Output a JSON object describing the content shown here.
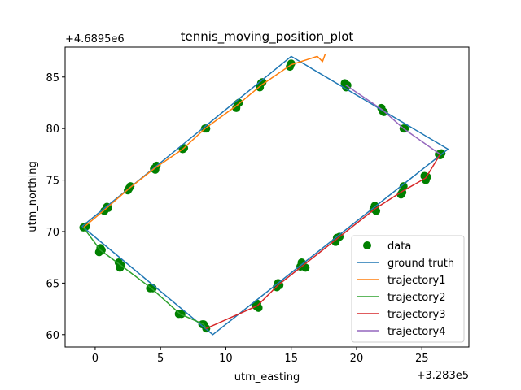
{
  "chart_data": {
    "type": "scatter",
    "title": "tennis_moving_position_plot",
    "xlabel": "utm_easting",
    "ylabel": "utm_northing",
    "x_offset_text": "+3.283e5",
    "y_offset_text": "+4.6895e6",
    "xlim": [
      -2.3,
      28.6
    ],
    "ylim": [
      58.8,
      87.9
    ],
    "x_ticks": [
      0,
      5,
      10,
      15,
      20,
      25
    ],
    "y_ticks": [
      60,
      65,
      70,
      75,
      80,
      85
    ],
    "x_tick_labels": [
      "0",
      "5",
      "10",
      "15",
      "20",
      "25"
    ],
    "y_tick_labels": [
      "60",
      "65",
      "70",
      "75",
      "80",
      "85"
    ],
    "grid": false,
    "legend_position": "lower right",
    "colors": {
      "data": "#008000",
      "ground_truth": "#1f77b4",
      "trajectory1": "#ff7f0e",
      "trajectory2": "#2ca02c",
      "trajectory3": "#d62728",
      "trajectory4": "#9467bd"
    },
    "scatter": {
      "name": "data",
      "points": [
        [
          -0.9,
          70.4
        ],
        [
          -0.7,
          70.5
        ],
        [
          0.7,
          72.0
        ],
        [
          0.9,
          72.4
        ],
        [
          1.0,
          72.3
        ],
        [
          2.5,
          74.0
        ],
        [
          2.7,
          74.4
        ],
        [
          2.6,
          74.2
        ],
        [
          4.5,
          76.1
        ],
        [
          4.7,
          76.4
        ],
        [
          4.6,
          76.0
        ],
        [
          6.7,
          78.0
        ],
        [
          6.8,
          78.1
        ],
        [
          8.4,
          80.0
        ],
        [
          8.5,
          80.0
        ],
        [
          10.8,
          82.0
        ],
        [
          10.9,
          82.4
        ],
        [
          11.0,
          82.5
        ],
        [
          12.6,
          84.0
        ],
        [
          12.7,
          84.4
        ],
        [
          12.8,
          84.5
        ],
        [
          14.9,
          86.0
        ],
        [
          15.0,
          86.3
        ],
        [
          19.1,
          84.4
        ],
        [
          19.2,
          84.0
        ],
        [
          19.3,
          84.2
        ],
        [
          21.9,
          82.0
        ],
        [
          22.0,
          81.7
        ],
        [
          22.1,
          81.6
        ],
        [
          23.6,
          80.0
        ],
        [
          23.7,
          80.0
        ],
        [
          26.3,
          77.5
        ],
        [
          26.4,
          77.4
        ],
        [
          26.5,
          77.6
        ],
        [
          25.2,
          75.4
        ],
        [
          25.3,
          75.0
        ],
        [
          25.4,
          75.3
        ],
        [
          23.6,
          74.4
        ],
        [
          23.5,
          73.8
        ],
        [
          23.4,
          73.6
        ],
        [
          21.4,
          72.5
        ],
        [
          21.5,
          72.0
        ],
        [
          21.3,
          72.2
        ],
        [
          18.5,
          69.4
        ],
        [
          18.7,
          69.5
        ],
        [
          18.4,
          69.0
        ],
        [
          15.8,
          67.0
        ],
        [
          16.1,
          66.5
        ],
        [
          15.7,
          66.6
        ],
        [
          14.0,
          65.0
        ],
        [
          13.9,
          64.6
        ],
        [
          14.1,
          64.8
        ],
        [
          12.4,
          63.0
        ],
        [
          12.5,
          62.6
        ],
        [
          12.3,
          62.8
        ],
        [
          8.3,
          61.0
        ],
        [
          8.5,
          60.6
        ],
        [
          8.2,
          61.0
        ],
        [
          6.4,
          62.0
        ],
        [
          6.6,
          62.0
        ],
        [
          4.2,
          64.5
        ],
        [
          4.4,
          64.5
        ],
        [
          1.8,
          67.0
        ],
        [
          1.9,
          66.5
        ],
        [
          2.0,
          66.7
        ],
        [
          0.4,
          68.4
        ],
        [
          0.3,
          68.0
        ],
        [
          0.5,
          68.2
        ]
      ]
    },
    "series": [
      {
        "name": "ground truth",
        "points": [
          [
            -1.0,
            70.5
          ],
          [
            15.0,
            87.0
          ],
          [
            27.0,
            78.0
          ],
          [
            9.0,
            60.0
          ],
          [
            -1.0,
            70.5
          ]
        ]
      },
      {
        "name": "trajectory1",
        "points": [
          [
            -0.9,
            70.4
          ],
          [
            0.8,
            72.2
          ],
          [
            2.6,
            74.2
          ],
          [
            4.6,
            76.2
          ],
          [
            6.7,
            78.0
          ],
          [
            8.4,
            80.0
          ],
          [
            10.9,
            82.3
          ],
          [
            12.7,
            84.2
          ],
          [
            15.0,
            86.2
          ],
          [
            17.0,
            87.0
          ],
          [
            17.4,
            86.5
          ],
          [
            17.6,
            87.2
          ]
        ]
      },
      {
        "name": "trajectory2",
        "points": [
          [
            -0.9,
            70.4
          ],
          [
            0.4,
            68.2
          ],
          [
            1.9,
            66.8
          ],
          [
            4.3,
            64.5
          ],
          [
            6.5,
            62.0
          ],
          [
            8.3,
            61.0
          ],
          [
            8.5,
            60.6
          ]
        ]
      },
      {
        "name": "trajectory3",
        "points": [
          [
            8.5,
            60.6
          ],
          [
            12.4,
            62.8
          ],
          [
            14.0,
            64.8
          ],
          [
            15.9,
            66.7
          ],
          [
            18.5,
            69.3
          ],
          [
            21.4,
            72.2
          ],
          [
            23.5,
            73.9
          ],
          [
            25.3,
            75.2
          ],
          [
            26.4,
            77.5
          ]
        ]
      },
      {
        "name": "trajectory4",
        "points": [
          [
            19.2,
            84.2
          ],
          [
            22.0,
            81.8
          ],
          [
            23.6,
            80.0
          ],
          [
            26.4,
            77.5
          ]
        ]
      }
    ],
    "legend": {
      "data": "data",
      "ground_truth": "ground truth",
      "trajectory1": "trajectory1",
      "trajectory2": "trajectory2",
      "trajectory3": "trajectory3",
      "trajectory4": "trajectory4"
    }
  }
}
